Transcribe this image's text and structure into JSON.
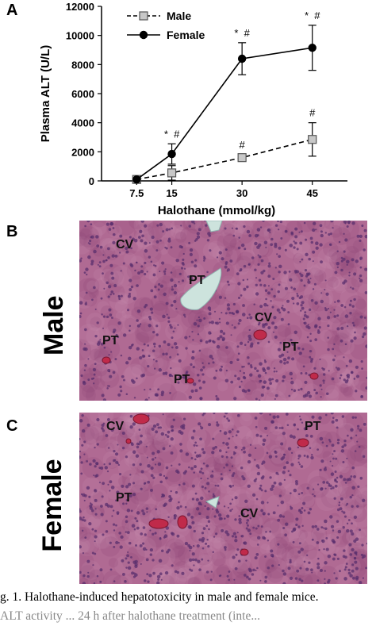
{
  "panels": {
    "a": {
      "letter": "A"
    },
    "b": {
      "letter": "B",
      "side_label": "Male",
      "labels": [
        "CV",
        "PT",
        "CV",
        "PT",
        "PT",
        "PT"
      ]
    },
    "c": {
      "letter": "C",
      "side_label": "Female",
      "labels": [
        "CV",
        "PT",
        "PT",
        "CV"
      ]
    }
  },
  "caption": {
    "line1": "g. 1. Halothane-induced hepatotoxicity in male and female mice.",
    "line2": "ALT activity ... 24 h after halothane treatment (inte..."
  },
  "colors": {
    "tissue": "#b06a93",
    "tissue_dark": "#8a4577",
    "nucleus": "#5a2f6e",
    "vessel": "#c02a4a",
    "portal": "#cde3dd"
  },
  "chart_data": {
    "type": "line",
    "x": [
      7.5,
      15,
      30,
      45
    ],
    "xticks": [
      "7.5",
      "15",
      "30",
      "45"
    ],
    "yticks": [
      "0",
      "2000",
      "4000",
      "6000",
      "8000",
      "10000",
      "12000"
    ],
    "xlabel": "Halothane (mmol/kg)",
    "ylabel": "Plasma ALT (U/L)",
    "ylim": [
      0,
      12000
    ],
    "legend_position": "top-left",
    "series": [
      {
        "name": "Male",
        "marker": "square",
        "line": "dashed",
        "color": "#999999",
        "values": [
          100,
          550,
          1600,
          2850
        ],
        "errors": [
          0,
          500,
          200,
          1150
        ],
        "annotations": [
          "",
          "",
          "#",
          "#"
        ]
      },
      {
        "name": "Female",
        "marker": "circle",
        "line": "solid",
        "color": "#000000",
        "values": [
          100,
          1850,
          8400,
          9150
        ],
        "errors": [
          0,
          700,
          1100,
          1550
        ],
        "annotations": [
          "",
          "* #",
          "* #",
          "* #"
        ]
      }
    ]
  }
}
